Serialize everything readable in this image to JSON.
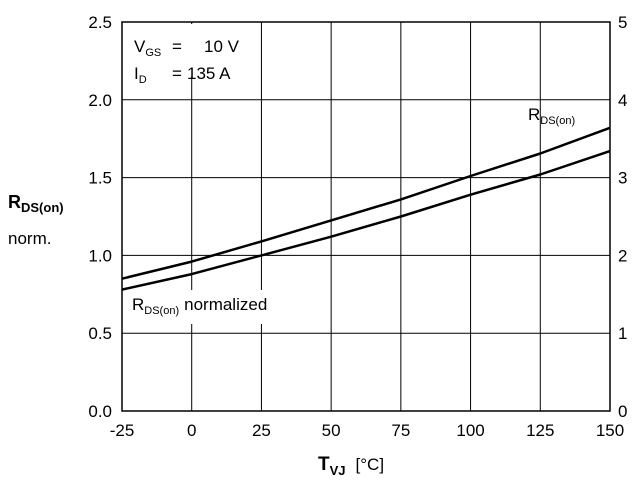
{
  "chart_data": {
    "type": "line",
    "x_unit": "[°C]",
    "xlabel": {
      "main": "T",
      "sub": "VJ"
    },
    "ylabel": {
      "main": "R",
      "sub": "DS(on)",
      "line2": "norm."
    },
    "xlim": [
      -25,
      150
    ],
    "ylim": [
      0,
      2.5
    ],
    "y2lim": [
      0,
      5
    ],
    "grid": true,
    "x_ticks": [
      "-25",
      "0",
      "25",
      "50",
      "75",
      "100",
      "125",
      "150"
    ],
    "y_ticks": [
      "0.0",
      "0.5",
      "1.0",
      "1.5",
      "2.0",
      "2.5"
    ],
    "y2_ticks": [
      "0",
      "1",
      "2",
      "3",
      "4",
      "5"
    ],
    "conditions": [
      {
        "name": "V",
        "sub": "GS",
        "eq": "=",
        "value": "10 V"
      },
      {
        "name": "I",
        "sub": "D",
        "eq": "=",
        "value": "135 A"
      }
    ],
    "series": [
      {
        "name": "R",
        "name_sub": "DS(on)",
        "axis": "right",
        "x": [
          -25,
          0,
          25,
          50,
          75,
          100,
          125,
          150
        ],
        "y": [
          1.7,
          1.92,
          2.18,
          2.45,
          2.72,
          3.02,
          3.31,
          3.64
        ]
      },
      {
        "name": "R",
        "name_sub": "DS(on)",
        "name_suffix": "normalized",
        "axis": "left",
        "x": [
          -25,
          0,
          25,
          50,
          75,
          100,
          125,
          150
        ],
        "y": [
          0.78,
          0.88,
          1.0,
          1.12,
          1.25,
          1.39,
          1.52,
          1.67
        ]
      }
    ]
  }
}
